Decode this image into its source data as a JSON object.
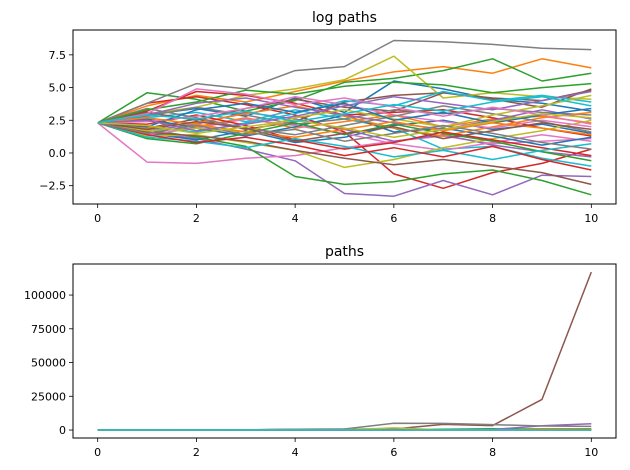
{
  "chart_data": [
    {
      "type": "line",
      "title": "log paths",
      "xlabel": "",
      "ylabel": "",
      "xlim": [
        -0.5,
        10.5
      ],
      "ylim": [
        -3.9,
        9.4
      ],
      "xticks": [
        0,
        2,
        4,
        6,
        8,
        10
      ],
      "xtick_labels": [
        "0",
        "2",
        "4",
        "6",
        "8",
        "10"
      ],
      "yticks": [
        -2.5,
        0.0,
        2.5,
        5.0,
        7.5
      ],
      "ytick_labels": [
        "−2.5",
        "0.0",
        "2.5",
        "5.0",
        "7.5"
      ],
      "grid": false,
      "x": [
        0,
        1,
        2,
        3,
        4,
        5,
        6,
        7,
        8,
        9,
        10
      ],
      "series": [
        {
          "color": "#1f77b4",
          "values": [
            2.3,
            2.9,
            3.4,
            2.8,
            4.2,
            3.1,
            5.5,
            4.9,
            4.1,
            3.8,
            3.2
          ]
        },
        {
          "color": "#ff7f0e",
          "values": [
            2.3,
            3.6,
            4.4,
            3.9,
            4.7,
            5.5,
            6.2,
            6.6,
            6.1,
            7.2,
            6.5
          ]
        },
        {
          "color": "#2ca02c",
          "values": [
            2.3,
            4.6,
            4.1,
            3.2,
            4.0,
            5.4,
            5.7,
            6.3,
            7.2,
            5.5,
            6.1
          ]
        },
        {
          "color": "#d62728",
          "values": [
            2.3,
            3.8,
            4.3,
            3.7,
            2.9,
            1.6,
            -1.6,
            -2.7,
            -1.5,
            -0.8,
            0.3
          ]
        },
        {
          "color": "#9467bd",
          "values": [
            2.3,
            1.6,
            1.1,
            0.3,
            -0.6,
            -3.1,
            -3.3,
            -2.1,
            -3.2,
            -1.7,
            -1.8
          ]
        },
        {
          "color": "#8c564b",
          "values": [
            2.3,
            1.9,
            2.6,
            1.8,
            2.4,
            3.9,
            4.4,
            4.6,
            4.2,
            4.0,
            4.8
          ]
        },
        {
          "color": "#e377c2",
          "values": [
            2.3,
            -0.7,
            -0.8,
            -0.4,
            -0.2,
            0.4,
            0.9,
            1.3,
            0.7,
            0.9,
            1.1
          ]
        },
        {
          "color": "#7f7f7f",
          "values": [
            2.3,
            3.8,
            5.3,
            4.9,
            6.3,
            6.6,
            8.6,
            8.5,
            8.3,
            8.0,
            7.9
          ]
        },
        {
          "color": "#bcbd22",
          "values": [
            2.3,
            3.0,
            3.5,
            4.4,
            4.9,
            5.6,
            7.4,
            4.2,
            4.6,
            4.3,
            4.1
          ]
        },
        {
          "color": "#17becf",
          "values": [
            2.3,
            2.7,
            3.1,
            2.4,
            3.3,
            2.6,
            1.9,
            0.3,
            0.5,
            -0.4,
            -1.0
          ]
        },
        {
          "color": "#1f77b4",
          "values": [
            2.3,
            1.5,
            1.0,
            1.7,
            0.8,
            1.2,
            2.1,
            2.5,
            1.8,
            2.2,
            1.5
          ]
        },
        {
          "color": "#ff7f0e",
          "values": [
            2.3,
            2.5,
            2.0,
            2.7,
            1.9,
            2.4,
            2.9,
            2.0,
            2.6,
            2.8,
            2.3
          ]
        },
        {
          "color": "#2ca02c",
          "values": [
            2.3,
            1.8,
            1.2,
            0.5,
            -1.8,
            -2.4,
            -2.2,
            -1.6,
            -1.3,
            -2.1,
            -3.2
          ]
        },
        {
          "color": "#d62728",
          "values": [
            2.3,
            3.2,
            4.7,
            4.4,
            3.8,
            2.9,
            3.1,
            3.3,
            2.7,
            1.9,
            1.3
          ]
        },
        {
          "color": "#9467bd",
          "values": [
            2.3,
            1.7,
            2.2,
            3.1,
            2.6,
            1.8,
            0.9,
            1.4,
            0.6,
            0.1,
            -0.3
          ]
        },
        {
          "color": "#8c564b",
          "values": [
            2.3,
            3.1,
            2.5,
            3.4,
            4.1,
            3.5,
            3.2,
            4.6,
            4.1,
            3.5,
            4.9
          ]
        },
        {
          "color": "#e377c2",
          "values": [
            2.3,
            1.4,
            1.9,
            2.6,
            2.1,
            1.5,
            0.7,
            0.2,
            0.8,
            1.4,
            0.9
          ]
        },
        {
          "color": "#7f7f7f",
          "values": [
            2.3,
            2.8,
            3.5,
            2.9,
            2.2,
            2.6,
            3.3,
            3.0,
            3.4,
            3.1,
            2.9
          ]
        },
        {
          "color": "#bcbd22",
          "values": [
            2.3,
            1.3,
            1.4,
            0.8,
            0.2,
            -1.1,
            -0.5,
            0.4,
            1.1,
            1.7,
            2.5
          ]
        },
        {
          "color": "#17becf",
          "values": [
            2.3,
            2.0,
            1.6,
            2.3,
            3.0,
            4.0,
            3.6,
            4.7,
            4.0,
            4.4,
            3.9
          ]
        },
        {
          "color": "#1f77b4",
          "values": [
            2.3,
            2.6,
            1.9,
            1.3,
            2.0,
            2.9,
            1.6,
            1.9,
            1.3,
            0.6,
            1.2
          ]
        },
        {
          "color": "#ff7f0e",
          "values": [
            2.3,
            1.9,
            2.3,
            3.0,
            3.6,
            2.8,
            1.9,
            1.3,
            2.0,
            2.7,
            3.1
          ]
        },
        {
          "color": "#2ca02c",
          "values": [
            2.3,
            1.1,
            0.7,
            1.5,
            2.3,
            1.4,
            2.2,
            1.5,
            0.9,
            0.1,
            -0.6
          ]
        },
        {
          "color": "#d62728",
          "values": [
            2.3,
            2.2,
            2.9,
            2.1,
            1.0,
            0.3,
            0.8,
            1.6,
            1.0,
            0.4,
            -0.2
          ]
        },
        {
          "color": "#9467bd",
          "values": [
            2.3,
            2.9,
            3.8,
            4.2,
            3.5,
            2.9,
            2.3,
            1.8,
            2.5,
            3.3,
            2.6
          ]
        },
        {
          "color": "#8c564b",
          "values": [
            2.3,
            1.6,
            1.3,
            0.9,
            0.2,
            -0.4,
            -0.9,
            -0.5,
            -1.0,
            -1.5,
            -2.4
          ]
        },
        {
          "color": "#e377c2",
          "values": [
            2.3,
            2.4,
            2.8,
            3.4,
            4.3,
            3.7,
            2.9,
            2.4,
            1.9,
            2.5,
            2.0
          ]
        },
        {
          "color": "#7f7f7f",
          "values": [
            2.3,
            3.4,
            2.7,
            1.9,
            1.4,
            2.1,
            2.8,
            3.6,
            3.0,
            2.4,
            1.6
          ]
        },
        {
          "color": "#bcbd22",
          "values": [
            2.3,
            1.7,
            1.9,
            1.6,
            2.7,
            3.3,
            2.6,
            2.0,
            2.9,
            3.6,
            4.4
          ]
        },
        {
          "color": "#17becf",
          "values": [
            2.3,
            1.2,
            0.9,
            0.4,
            1.1,
            0.5,
            -0.3,
            0.2,
            -0.5,
            0.2,
            0.7
          ]
        },
        {
          "color": "#1f77b4",
          "values": [
            2.3,
            2.0,
            3.3,
            3.8,
            3.1,
            3.8,
            2.5,
            3.1,
            2.3,
            2.9,
            3.4
          ]
        },
        {
          "color": "#ff7f0e",
          "values": [
            2.3,
            2.7,
            2.2,
            1.6,
            1.2,
            1.8,
            2.4,
            1.7,
            2.3,
            1.9,
            1.4
          ]
        },
        {
          "color": "#2ca02c",
          "values": [
            2.3,
            3.3,
            3.9,
            4.8,
            4.5,
            5.1,
            5.4,
            5.2,
            4.6,
            5.0,
            5.3
          ]
        },
        {
          "color": "#d62728",
          "values": [
            2.3,
            1.4,
            0.8,
            1.2,
            0.6,
            -0.2,
            0.4,
            -0.3,
            0.5,
            -0.5,
            -1.3
          ]
        },
        {
          "color": "#9467bd",
          "values": [
            2.3,
            2.5,
            1.7,
            2.2,
            2.8,
            3.6,
            4.3,
            3.8,
            3.3,
            4.0,
            4.7
          ]
        },
        {
          "color": "#8c564b",
          "values": [
            2.3,
            1.8,
            2.4,
            1.9,
            0.9,
            1.5,
            2.0,
            1.1,
            1.7,
            2.3,
            1.8
          ]
        },
        {
          "color": "#e377c2",
          "values": [
            2.3,
            3.0,
            4.9,
            4.5,
            3.7,
            4.2,
            3.5,
            2.8,
            3.5,
            2.9,
            2.2
          ]
        },
        {
          "color": "#7f7f7f",
          "values": [
            2.3,
            1.5,
            2.1,
            1.4,
            1.8,
            0.9,
            1.5,
            2.1,
            1.5,
            0.8,
            0.3
          ]
        },
        {
          "color": "#bcbd22",
          "values": [
            2.3,
            2.1,
            1.5,
            2.0,
            2.5,
            1.9,
            1.2,
            1.8,
            2.4,
            3.0,
            2.7
          ]
        },
        {
          "color": "#17becf",
          "values": [
            2.3,
            2.9,
            2.6,
            3.2,
            2.4,
            3.0,
            3.7,
            3.2,
            3.9,
            4.3,
            3.6
          ]
        }
      ]
    },
    {
      "type": "line",
      "title": "paths",
      "xlabel": "",
      "ylabel": "",
      "xlim": [
        -0.5,
        10.5
      ],
      "ylim": [
        -5900,
        123000
      ],
      "xticks": [
        0,
        2,
        4,
        6,
        8,
        10
      ],
      "xtick_labels": [
        "0",
        "2",
        "4",
        "6",
        "8",
        "10"
      ],
      "yticks": [
        0,
        25000,
        50000,
        75000,
        100000
      ],
      "ytick_labels": [
        "0",
        "25000",
        "50000",
        "75000",
        "100000"
      ],
      "grid": false,
      "x": [
        0,
        1,
        2,
        3,
        4,
        5,
        6,
        7,
        8,
        9,
        10
      ],
      "series": [
        {
          "color": "#1f77b4",
          "values": [
            10,
            15,
            20,
            14,
            30,
            40,
            200,
            300,
            400,
            500,
            500
          ]
        },
        {
          "color": "#ff7f0e",
          "values": [
            10,
            20,
            40,
            30,
            60,
            120,
            300,
            500,
            700,
            900,
            1000
          ]
        },
        {
          "color": "#2ca02c",
          "values": [
            10,
            30,
            40,
            30,
            60,
            200,
            400,
            600,
            900,
            300,
            500
          ]
        },
        {
          "color": "#d62728",
          "values": [
            10,
            10,
            10,
            10,
            10,
            10,
            10,
            10,
            10,
            10,
            10
          ]
        },
        {
          "color": "#9467bd",
          "values": [
            10,
            10,
            10,
            10,
            10,
            10,
            100,
            200,
            400,
            3200,
            4600
          ]
        },
        {
          "color": "#8c564b",
          "values": [
            10,
            100,
            200,
            100,
            600,
            700,
            800,
            4200,
            3300,
            22700,
            117000
          ]
        },
        {
          "color": "#e377c2",
          "values": [
            10,
            10,
            10,
            10,
            10,
            10,
            10,
            10,
            10,
            10,
            10
          ]
        },
        {
          "color": "#7f7f7f",
          "values": [
            10,
            50,
            200,
            150,
            550,
            750,
            5000,
            4900,
            4000,
            3000,
            2700
          ]
        },
        {
          "color": "#bcbd22",
          "values": [
            10,
            20,
            40,
            80,
            130,
            270,
            1600,
            70,
            100,
            70,
            60
          ]
        },
        {
          "color": "#17becf",
          "values": [
            10,
            15,
            20,
            10,
            30,
            15,
            10,
            10,
            10,
            10,
            10
          ]
        }
      ]
    }
  ]
}
